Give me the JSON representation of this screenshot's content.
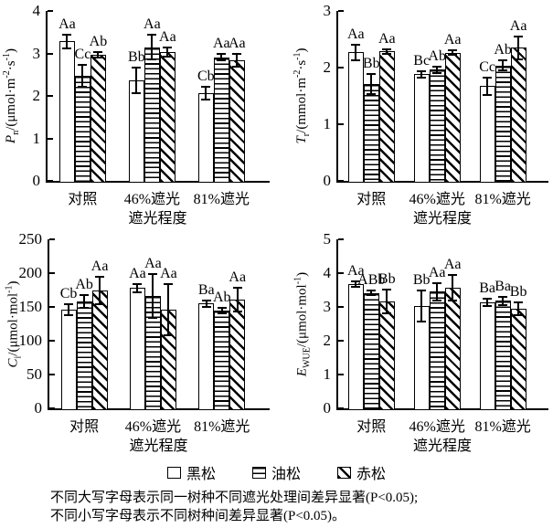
{
  "legend": {
    "series": [
      {
        "name": "黑松",
        "pattern": "plain-white"
      },
      {
        "name": "油松",
        "pattern": "horizontal-lines"
      },
      {
        "name": "赤松",
        "pattern": "diagonal-lines"
      }
    ]
  },
  "caption": {
    "line1": "不同大写字母表示同一树种不同遮光处理间差异显著(P<0.05);",
    "line2": "不同小写字母表示不同树种间差异显著(P<0.05)。"
  },
  "chart_data": [
    {
      "type": "bar",
      "panel": "net-photosynthetic-rate",
      "categories": [
        "对照",
        "46%遮光",
        "81%遮光"
      ],
      "xlabel": "遮光程度",
      "ylabel": {
        "variable": "P",
        "subscript": "n",
        "segments": [
          {
            "t": "/(μmol·m"
          },
          {
            "t": "-2",
            "sup": true
          },
          {
            "t": "·s"
          },
          {
            "t": "-1",
            "sup": true
          },
          {
            "t": ")"
          }
        ]
      },
      "ylim": [
        0,
        4
      ],
      "yticks": [
        0,
        1,
        2,
        3,
        4
      ],
      "grid": false,
      "series": [
        {
          "name": "黑松",
          "values": [
            3.28,
            2.37,
            2.06
          ],
          "errors": [
            0.16,
            0.3,
            0.15
          ],
          "sig_letters": [
            "Aa",
            "Bb",
            "Cb"
          ]
        },
        {
          "name": "油松",
          "values": [
            2.47,
            3.15,
            2.91
          ],
          "errors": [
            0.26,
            0.29,
            0.07
          ],
          "sig_letters": [
            "Cc",
            "Aa",
            "Aa"
          ]
        },
        {
          "name": "赤松",
          "values": [
            2.97,
            3.03,
            2.83
          ],
          "errors": [
            0.07,
            0.1,
            0.15
          ],
          "sig_letters": [
            "Ab",
            "Aa",
            "Aa"
          ]
        }
      ]
    },
    {
      "type": "bar",
      "panel": "transpiration-rate",
      "categories": [
        "对照",
        "46%遮光",
        "81%遮光"
      ],
      "xlabel": "遮光程度",
      "ylabel": {
        "variable": "T",
        "subscript": "r",
        "segments": [
          {
            "t": "/(mmol·m"
          },
          {
            "t": "-2",
            "sup": true
          },
          {
            "t": "·s"
          },
          {
            "t": "-1",
            "sup": true
          },
          {
            "t": ")"
          }
        ]
      },
      "ylim": [
        0,
        3
      ],
      "yticks": [
        0,
        1,
        2,
        3
      ],
      "grid": false,
      "series": [
        {
          "name": "黑松",
          "values": [
            2.27,
            1.88,
            1.67
          ],
          "errors": [
            0.14,
            0.06,
            0.15
          ],
          "sig_letters": [
            "Aa",
            "Bc",
            "Cc"
          ]
        },
        {
          "name": "油松",
          "values": [
            1.71,
            1.96,
            2.04
          ],
          "errors": [
            0.17,
            0.06,
            0.09
          ],
          "sig_letters": [
            "Bb",
            "Ab",
            "Ab"
          ]
        },
        {
          "name": "赤松",
          "values": [
            2.29,
            2.26,
            2.35
          ],
          "errors": [
            0.04,
            0.04,
            0.2
          ],
          "sig_letters": [
            "Aa",
            "Aa",
            "Aa"
          ]
        }
      ]
    },
    {
      "type": "bar",
      "panel": "intercellular-co2-concentration",
      "categories": [
        "对照",
        "46%遮光",
        "81%遮光"
      ],
      "xlabel": "遮光程度",
      "ylabel": {
        "variable": "C",
        "subscript": "i",
        "segments": [
          {
            "t": "/(μmol·mol"
          },
          {
            "t": "-1",
            "sup": true
          },
          {
            "t": ")"
          }
        ]
      },
      "ylim": [
        0,
        250
      ],
      "yticks": [
        0,
        50,
        100,
        150,
        200,
        250
      ],
      "grid": false,
      "series": [
        {
          "name": "黑松",
          "values": [
            146,
            178,
            155
          ],
          "errors": [
            8,
            6,
            5
          ],
          "sig_letters": [
            "Cb",
            "Aa",
            "Ba"
          ]
        },
        {
          "name": "油松",
          "values": [
            158,
            166,
            145
          ],
          "errors": [
            10,
            32,
            4
          ],
          "sig_letters": [
            "Ab",
            "Aa",
            "Ab"
          ]
        },
        {
          "name": "赤松",
          "values": [
            174,
            146,
            161
          ],
          "errors": [
            20,
            38,
            18
          ],
          "sig_letters": [
            "Aa",
            "Aa",
            "Aa"
          ]
        }
      ]
    },
    {
      "type": "bar",
      "panel": "water-use-efficiency",
      "categories": [
        "对照",
        "46%遮光",
        "81%遮光"
      ],
      "xlabel": "遮光程度",
      "ylabel": {
        "variable": "E",
        "subscript": "WUE",
        "segments": [
          {
            "t": "/(μmol·mol"
          },
          {
            "t": "-1",
            "sup": true
          },
          {
            "t": ")"
          }
        ]
      },
      "ylim": [
        0,
        5
      ],
      "yticks": [
        0,
        1,
        2,
        3,
        4,
        5
      ],
      "grid": false,
      "series": [
        {
          "name": "黑松",
          "values": [
            3.68,
            3.03,
            3.14
          ],
          "errors": [
            0.08,
            0.45,
            0.1
          ],
          "sig_letters": [
            "Aa",
            "Bb",
            "Ba"
          ]
        },
        {
          "name": "油松",
          "values": [
            3.41,
            3.45,
            3.18
          ],
          "errors": [
            0.07,
            0.25,
            0.13
          ],
          "sig_letters": [
            "ABb",
            "Aa",
            "Ba"
          ]
        },
        {
          "name": "赤松",
          "values": [
            3.16,
            3.57,
            2.95
          ],
          "errors": [
            0.36,
            0.37,
            0.18
          ],
          "sig_letters": [
            "Bb",
            "Aa",
            "Bb"
          ]
        }
      ]
    }
  ]
}
